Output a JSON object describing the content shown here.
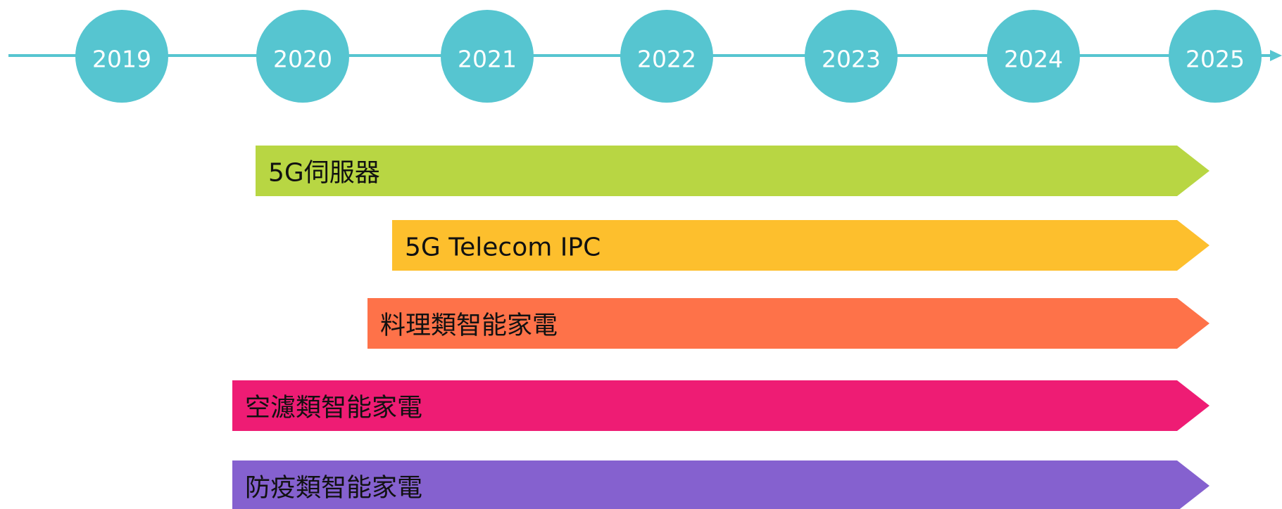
{
  "timeline": {
    "years": [
      "2019",
      "2020",
      "2021",
      "2022",
      "2023",
      "2024",
      "2025"
    ]
  },
  "items": [
    {
      "label": "5G伺服器"
    },
    {
      "label": "5G Telecom IPC"
    },
    {
      "label": "料理類智能家電"
    },
    {
      "label": "空濾類智能家電"
    },
    {
      "label": "防疫類智能家電"
    }
  ]
}
